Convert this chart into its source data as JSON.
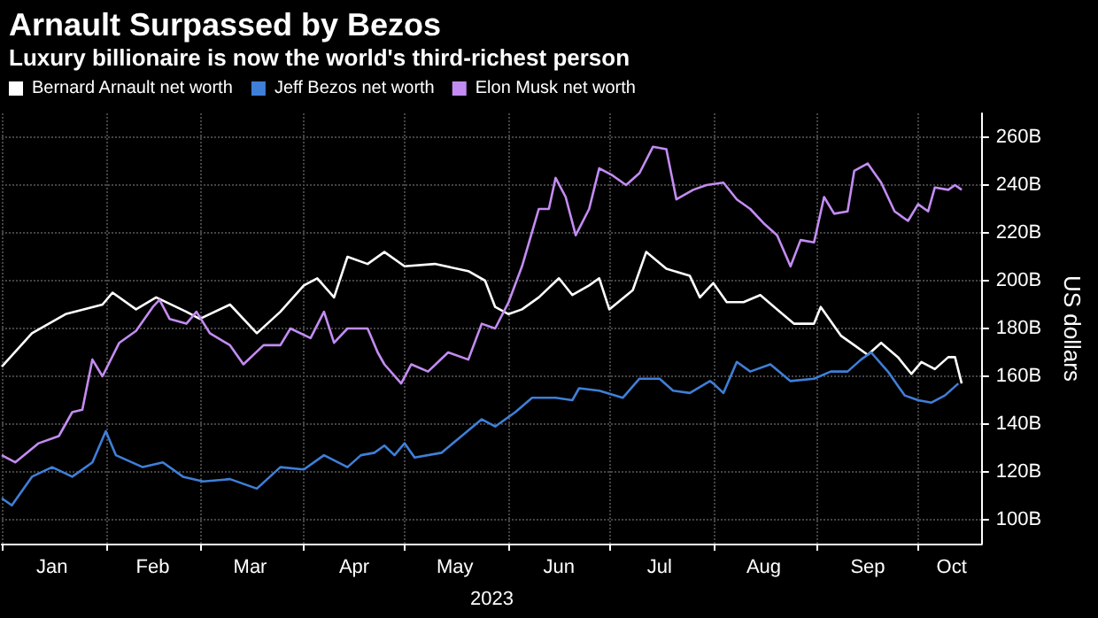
{
  "chart_data": {
    "type": "line",
    "title": "Arnault Surpassed by Bezos",
    "subtitle": "Luxury billionaire is now the world's third-richest person",
    "xlabel": "2023",
    "ylabel": "US dollars",
    "xlim": [
      "2023-01-01",
      "2023-10-20"
    ],
    "xticks": [
      {
        "value": "2023-01-01",
        "label": null
      },
      {
        "value": "2023-01-16",
        "label": "Jan"
      },
      {
        "value": "2023-02-01",
        "label": null
      },
      {
        "value": "2023-02-15",
        "label": "Feb"
      },
      {
        "value": "2023-03-01",
        "label": null
      },
      {
        "value": "2023-03-16",
        "label": "Mar"
      },
      {
        "value": "2023-04-01",
        "label": null
      },
      {
        "value": "2023-04-16",
        "label": "Apr"
      },
      {
        "value": "2023-05-01",
        "label": null
      },
      {
        "value": "2023-05-16",
        "label": "May"
      },
      {
        "value": "2023-06-01",
        "label": null
      },
      {
        "value": "2023-06-16",
        "label": "Jun"
      },
      {
        "value": "2023-07-01",
        "label": null
      },
      {
        "value": "2023-07-16",
        "label": "Jul"
      },
      {
        "value": "2023-08-01",
        "label": null
      },
      {
        "value": "2023-08-16",
        "label": "Aug"
      },
      {
        "value": "2023-09-01",
        "label": null
      },
      {
        "value": "2023-09-16",
        "label": "Sep"
      },
      {
        "value": "2023-10-01",
        "label": null
      },
      {
        "value": "2023-10-11",
        "label": "Oct"
      }
    ],
    "ylim": [
      90,
      270
    ],
    "yticks": [
      {
        "value": 100,
        "label": "100B"
      },
      {
        "value": 120,
        "label": "120B"
      },
      {
        "value": 140,
        "label": "140B"
      },
      {
        "value": 160,
        "label": "160B"
      },
      {
        "value": 180,
        "label": "180B"
      },
      {
        "value": 200,
        "label": "200B"
      },
      {
        "value": 220,
        "label": "220B"
      },
      {
        "value": 240,
        "label": "240B"
      },
      {
        "value": 260,
        "label": "260B"
      }
    ],
    "grid": true,
    "legend": "top left",
    "marker": "none",
    "line_style": "solid",
    "series": [
      {
        "name": "Bernard Arnault net worth",
        "color": "#ffffff",
        "x": [
          "2023-01-01",
          "2023-01-10",
          "2023-01-20",
          "2023-01-31",
          "2023-02-03",
          "2023-02-10",
          "2023-02-16",
          "2023-02-25",
          "2023-03-01",
          "2023-03-10",
          "2023-03-18",
          "2023-03-25",
          "2023-04-01",
          "2023-04-05",
          "2023-04-10",
          "2023-04-14",
          "2023-04-20",
          "2023-04-25",
          "2023-05-01",
          "2023-05-10",
          "2023-05-20",
          "2023-05-25",
          "2023-05-28",
          "2023-06-01",
          "2023-06-05",
          "2023-06-10",
          "2023-06-16",
          "2023-06-20",
          "2023-06-25",
          "2023-06-28",
          "2023-07-01",
          "2023-07-08",
          "2023-07-12",
          "2023-07-18",
          "2023-07-25",
          "2023-07-28",
          "2023-08-01",
          "2023-08-05",
          "2023-08-10",
          "2023-08-15",
          "2023-08-20",
          "2023-08-25",
          "2023-08-31",
          "2023-09-02",
          "2023-09-08",
          "2023-09-12",
          "2023-09-16",
          "2023-09-20",
          "2023-09-25",
          "2023-09-29",
          "2023-10-02",
          "2023-10-06",
          "2023-10-10",
          "2023-10-12",
          "2023-10-14"
        ],
        "values": [
          164,
          178,
          186,
          190,
          195,
          188,
          193,
          187,
          184,
          190,
          178,
          187,
          198,
          201,
          193,
          210,
          207,
          212,
          206,
          207,
          204,
          200,
          189,
          186,
          188,
          193,
          201,
          194,
          198,
          201,
          188,
          196,
          212,
          205,
          202,
          193,
          199,
          191,
          191,
          194,
          188,
          182,
          182,
          189,
          177,
          173,
          169,
          174,
          168,
          161,
          166,
          163,
          168,
          168,
          157
        ]
      },
      {
        "name": "Jeff Bezos net worth",
        "color": "#3f7fd8",
        "x": [
          "2023-01-01",
          "2023-01-04",
          "2023-01-10",
          "2023-01-16",
          "2023-01-22",
          "2023-01-28",
          "2023-02-01",
          "2023-02-04",
          "2023-02-12",
          "2023-02-18",
          "2023-02-24",
          "2023-03-02",
          "2023-03-10",
          "2023-03-18",
          "2023-03-25",
          "2023-04-01",
          "2023-04-07",
          "2023-04-14",
          "2023-04-18",
          "2023-04-22",
          "2023-04-25",
          "2023-04-28",
          "2023-05-01",
          "2023-05-04",
          "2023-05-12",
          "2023-05-18",
          "2023-05-24",
          "2023-05-28",
          "2023-06-03",
          "2023-06-08",
          "2023-06-15",
          "2023-06-20",
          "2023-06-22",
          "2023-06-28",
          "2023-07-05",
          "2023-07-10",
          "2023-07-16",
          "2023-07-20",
          "2023-07-25",
          "2023-07-31",
          "2023-08-01",
          "2023-08-04",
          "2023-08-08",
          "2023-08-12",
          "2023-08-18",
          "2023-08-24",
          "2023-08-31",
          "2023-09-05",
          "2023-09-10",
          "2023-09-14",
          "2023-09-17",
          "2023-09-22",
          "2023-09-27",
          "2023-10-01",
          "2023-10-05",
          "2023-10-09",
          "2023-10-13"
        ],
        "values": [
          109,
          106,
          118,
          122,
          118,
          124,
          137,
          127,
          122,
          124,
          118,
          116,
          117,
          113,
          122,
          121,
          127,
          122,
          127,
          128,
          131,
          127,
          132,
          126,
          128,
          135,
          142,
          139,
          145,
          151,
          151,
          150,
          155,
          154,
          151,
          159,
          159,
          154,
          153,
          158,
          157,
          153,
          166,
          162,
          165,
          158,
          159,
          162,
          162,
          167,
          170,
          162,
          152,
          150,
          149,
          152,
          157
        ]
      },
      {
        "name": "Elon Musk net worth",
        "color": "#c38cf2",
        "x": [
          "2023-01-01",
          "2023-01-05",
          "2023-01-12",
          "2023-01-18",
          "2023-01-22",
          "2023-01-25",
          "2023-01-28",
          "2023-01-31",
          "2023-02-05",
          "2023-02-10",
          "2023-02-15",
          "2023-02-17",
          "2023-02-20",
          "2023-02-25",
          "2023-02-28",
          "2023-03-04",
          "2023-03-10",
          "2023-03-14",
          "2023-03-20",
          "2023-03-25",
          "2023-03-28",
          "2023-04-03",
          "2023-04-07",
          "2023-04-10",
          "2023-04-14",
          "2023-04-20",
          "2023-04-23",
          "2023-04-25",
          "2023-04-30",
          "2023-05-03",
          "2023-05-08",
          "2023-05-14",
          "2023-05-20",
          "2023-05-24",
          "2023-05-28",
          "2023-06-01",
          "2023-06-05",
          "2023-06-10",
          "2023-06-13",
          "2023-06-15",
          "2023-06-18",
          "2023-06-21",
          "2023-06-25",
          "2023-06-28",
          "2023-07-02",
          "2023-07-06",
          "2023-07-10",
          "2023-07-14",
          "2023-07-18",
          "2023-07-21",
          "2023-07-26",
          "2023-07-30",
          "2023-08-04",
          "2023-08-08",
          "2023-08-12",
          "2023-08-16",
          "2023-08-20",
          "2023-08-24",
          "2023-08-27",
          "2023-08-31",
          "2023-09-03",
          "2023-09-06",
          "2023-09-10",
          "2023-09-12",
          "2023-09-16",
          "2023-09-20",
          "2023-09-24",
          "2023-09-28",
          "2023-10-01",
          "2023-10-04",
          "2023-10-06",
          "2023-10-10",
          "2023-10-12",
          "2023-10-14"
        ],
        "values": [
          127,
          124,
          132,
          135,
          145,
          146,
          167,
          160,
          174,
          179,
          189,
          192,
          184,
          182,
          187,
          178,
          173,
          165,
          173,
          173,
          180,
          176,
          187,
          174,
          180,
          180,
          170,
          165,
          157,
          165,
          162,
          170,
          167,
          182,
          180,
          191,
          206,
          230,
          230,
          243,
          235,
          219,
          230,
          247,
          244,
          240,
          245,
          256,
          255,
          234,
          238,
          240,
          241,
          234,
          230,
          224,
          219,
          206,
          217,
          216,
          235,
          228,
          229,
          246,
          249,
          241,
          229,
          225,
          232,
          229,
          239,
          238,
          240,
          238
        ]
      }
    ]
  }
}
